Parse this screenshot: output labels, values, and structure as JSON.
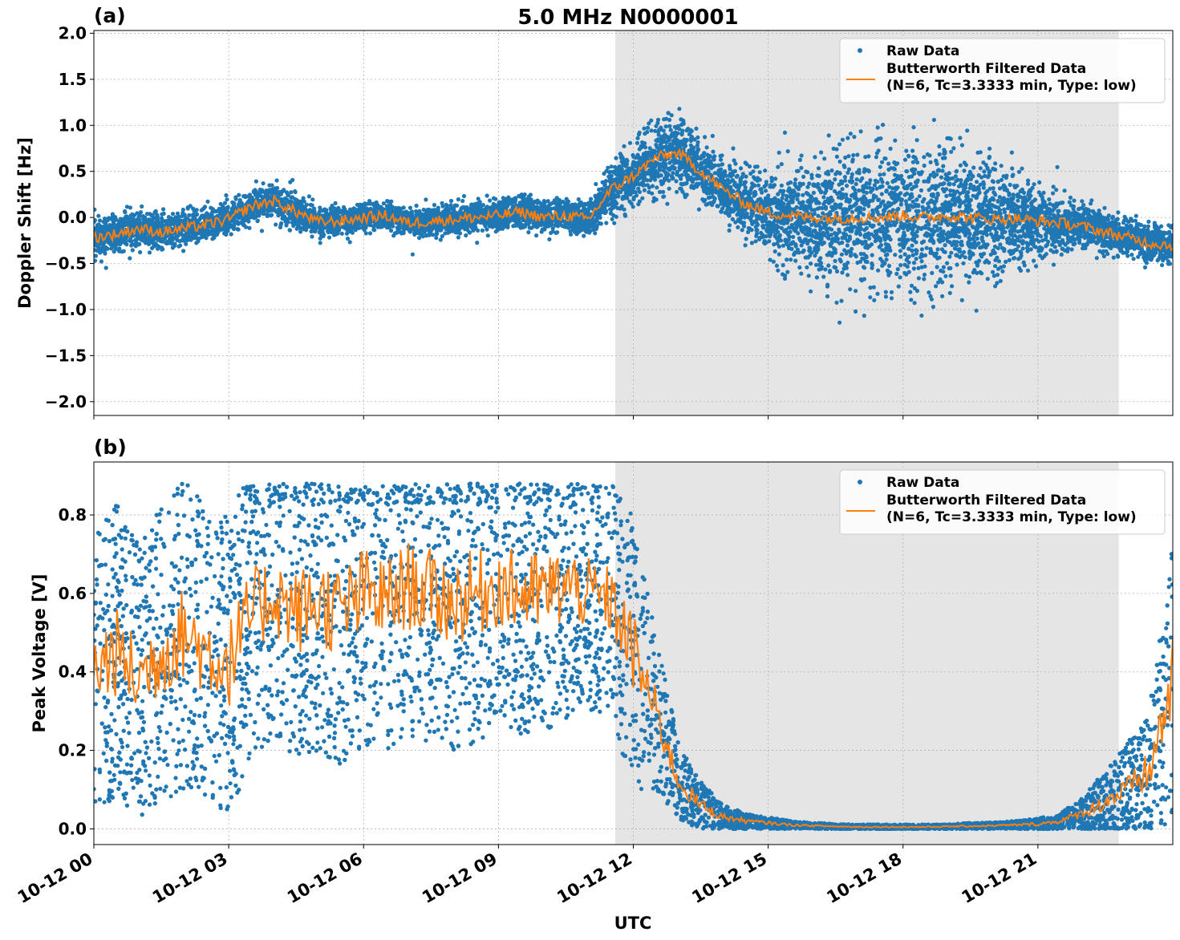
{
  "figure": {
    "title": "5.0 MHz N0000001",
    "xlabel": "UTC",
    "colors": {
      "raw": "#1f77b4",
      "filtered": "#ff7f0e",
      "shade": "#e5e5e5",
      "grid": "#b0b0b0"
    }
  },
  "chart_data": [
    {
      "panel_label": "(a)",
      "type": "scatter",
      "ylabel": "Doppler Shift [Hz]",
      "ylim": [
        -2.15,
        2.03
      ],
      "yticks": [
        -2.0,
        -1.5,
        -1.0,
        -0.5,
        0.0,
        0.5,
        1.0,
        1.5,
        2.0
      ],
      "ytick_labels": [
        "−2.0",
        "−1.5",
        "−1.0",
        "−0.5",
        "0.0",
        "0.5",
        "1.0",
        "1.5",
        "2.0"
      ],
      "xlim_hours": [
        0,
        24
      ],
      "shaded_interval_hours": [
        11.6,
        22.8
      ],
      "show_xtick_labels": false,
      "legend": {
        "position": "top-right",
        "raw_label": "Raw Data",
        "filtered_label_line1": "Butterworth Filtered Data",
        "filtered_label_line2": "(N=6, Tc=3.3333 min, Type: low)"
      },
      "series": [
        {
          "name": "Butterworth Filtered Data",
          "style": "line",
          "x_hours": [
            0,
            0.5,
            1,
            1.5,
            2,
            2.5,
            3,
            3.5,
            4,
            4.5,
            5,
            5.5,
            6,
            6.5,
            7,
            7.5,
            8,
            8.5,
            9,
            9.5,
            10,
            10.5,
            11,
            11.5,
            12,
            12.5,
            13,
            13.5,
            14,
            14.5,
            15,
            15.5,
            16,
            16.5,
            17,
            17.5,
            18,
            18.5,
            19,
            19.5,
            20,
            20.5,
            21,
            21.5,
            22,
            22.5,
            23,
            23.5,
            24
          ],
          "y": [
            -0.22,
            -0.18,
            -0.12,
            -0.16,
            -0.12,
            -0.08,
            -0.02,
            0.12,
            0.18,
            0.06,
            -0.05,
            -0.04,
            0.0,
            0.02,
            -0.06,
            -0.04,
            -0.02,
            0.0,
            0.02,
            0.06,
            0.0,
            0.02,
            -0.02,
            0.3,
            0.45,
            0.65,
            0.7,
            0.5,
            0.3,
            0.15,
            0.05,
            0.02,
            0.0,
            -0.01,
            0.0,
            0.0,
            0.02,
            0.0,
            0.02,
            0.0,
            -0.02,
            -0.01,
            -0.04,
            -0.06,
            -0.1,
            -0.16,
            -0.22,
            -0.28,
            -0.3
          ]
        },
        {
          "name": "Raw Data",
          "style": "scatter-band",
          "x_hours": [
            0,
            0.5,
            1,
            1.5,
            2,
            2.5,
            3,
            3.5,
            4,
            4.5,
            5,
            5.5,
            6,
            6.5,
            7,
            7.5,
            8,
            8.5,
            9,
            9.5,
            10,
            10.5,
            11,
            11.5,
            12,
            12.5,
            13,
            13.5,
            14,
            14.5,
            15,
            15.5,
            16,
            16.5,
            17,
            17.5,
            18,
            18.5,
            19,
            19.5,
            20,
            20.5,
            21,
            21.5,
            22,
            22.5,
            23,
            23.5,
            24
          ],
          "y_center": [
            -0.22,
            -0.18,
            -0.12,
            -0.16,
            -0.12,
            -0.08,
            -0.02,
            0.12,
            0.18,
            0.06,
            -0.05,
            -0.04,
            0.0,
            0.02,
            -0.06,
            -0.04,
            -0.02,
            0.0,
            0.02,
            0.06,
            0.0,
            0.02,
            -0.02,
            0.3,
            0.45,
            0.65,
            0.7,
            0.5,
            0.3,
            0.15,
            0.05,
            0.02,
            0.0,
            -0.01,
            0.0,
            0.0,
            0.02,
            0.0,
            0.02,
            0.0,
            -0.02,
            -0.01,
            -0.04,
            -0.06,
            -0.1,
            -0.16,
            -0.22,
            -0.28,
            -0.3
          ],
          "spread": [
            0.25,
            0.2,
            0.2,
            0.22,
            0.22,
            0.18,
            0.18,
            0.2,
            0.22,
            0.2,
            0.18,
            0.16,
            0.16,
            0.16,
            0.16,
            0.16,
            0.16,
            0.18,
            0.18,
            0.18,
            0.18,
            0.18,
            0.2,
            0.3,
            0.35,
            0.4,
            0.45,
            0.4,
            0.3,
            0.35,
            0.45,
            0.55,
            0.6,
            0.75,
            0.8,
            0.85,
            0.85,
            0.8,
            0.8,
            0.75,
            0.7,
            0.55,
            0.4,
            0.3,
            0.25,
            0.22,
            0.22,
            0.22,
            0.22
          ]
        }
      ]
    },
    {
      "panel_label": "(b)",
      "type": "scatter",
      "ylabel": "Peak Voltage [V]",
      "ylim": [
        -0.04,
        0.935
      ],
      "yticks": [
        0.0,
        0.2,
        0.4,
        0.6,
        0.8
      ],
      "ytick_labels": [
        "0.0",
        "0.2",
        "0.4",
        "0.6",
        "0.8"
      ],
      "xlim_hours": [
        0,
        24
      ],
      "shaded_interval_hours": [
        11.6,
        22.8
      ],
      "xticks_hours": [
        0,
        3,
        6,
        9,
        12,
        15,
        18,
        21
      ],
      "xtick_labels": [
        "10-12 00",
        "10-12 03",
        "10-12 06",
        "10-12 09",
        "10-12 12",
        "10-12 15",
        "10-12 18",
        "10-12 21"
      ],
      "legend": {
        "position": "top-right",
        "raw_label": "Raw Data",
        "filtered_label_line1": "Butterworth Filtered Data",
        "filtered_label_line2": "(N=6, Tc=3.3333 min, Type: low)"
      },
      "series": [
        {
          "name": "Butterworth Filtered Data",
          "style": "line",
          "x_hours": [
            0,
            0.5,
            1,
            1.5,
            2,
            2.5,
            3,
            3.5,
            4,
            4.5,
            5,
            5.5,
            6,
            6.5,
            7,
            7.5,
            8,
            8.5,
            9,
            9.5,
            10,
            10.5,
            11,
            11.5,
            12,
            12.5,
            13,
            13.5,
            14,
            14.5,
            15,
            15.5,
            16,
            16.5,
            17,
            17.5,
            18,
            18.5,
            19,
            19.5,
            20,
            20.5,
            21,
            21.5,
            22,
            22.5,
            23,
            23.5,
            24
          ],
          "y": [
            0.4,
            0.45,
            0.38,
            0.45,
            0.5,
            0.45,
            0.42,
            0.55,
            0.6,
            0.55,
            0.58,
            0.55,
            0.6,
            0.58,
            0.62,
            0.6,
            0.58,
            0.6,
            0.62,
            0.6,
            0.6,
            0.62,
            0.6,
            0.58,
            0.45,
            0.3,
            0.12,
            0.06,
            0.03,
            0.02,
            0.015,
            0.01,
            0.008,
            0.006,
            0.005,
            0.005,
            0.005,
            0.005,
            0.006,
            0.007,
            0.008,
            0.01,
            0.012,
            0.02,
            0.04,
            0.07,
            0.1,
            0.15,
            0.38
          ]
        },
        {
          "name": "Raw Data",
          "style": "scatter-band",
          "x_hours": [
            0,
            0.5,
            1,
            1.5,
            2,
            2.5,
            3,
            3.5,
            4,
            4.5,
            5,
            5.5,
            6,
            6.5,
            7,
            7.5,
            8,
            8.5,
            9,
            9.5,
            10,
            10.5,
            11,
            11.5,
            12,
            12.5,
            13,
            13.5,
            14,
            14.5,
            15,
            15.5,
            16,
            16.5,
            17,
            17.5,
            18,
            18.5,
            19,
            19.5,
            20,
            20.5,
            21,
            21.5,
            22,
            22.5,
            23,
            23.5,
            24
          ],
          "y_center": [
            0.4,
            0.45,
            0.38,
            0.45,
            0.5,
            0.45,
            0.42,
            0.55,
            0.6,
            0.55,
            0.58,
            0.55,
            0.6,
            0.58,
            0.62,
            0.6,
            0.58,
            0.6,
            0.62,
            0.6,
            0.6,
            0.62,
            0.6,
            0.58,
            0.45,
            0.3,
            0.12,
            0.06,
            0.03,
            0.02,
            0.015,
            0.01,
            0.008,
            0.006,
            0.005,
            0.005,
            0.005,
            0.005,
            0.006,
            0.007,
            0.008,
            0.01,
            0.012,
            0.02,
            0.04,
            0.07,
            0.1,
            0.15,
            0.38
          ],
          "spread": [
            0.35,
            0.38,
            0.35,
            0.38,
            0.4,
            0.38,
            0.38,
            0.38,
            0.36,
            0.38,
            0.38,
            0.4,
            0.4,
            0.38,
            0.38,
            0.38,
            0.38,
            0.38,
            0.36,
            0.36,
            0.36,
            0.34,
            0.3,
            0.3,
            0.35,
            0.2,
            0.1,
            0.06,
            0.03,
            0.02,
            0.015,
            0.01,
            0.008,
            0.006,
            0.006,
            0.006,
            0.006,
            0.006,
            0.006,
            0.008,
            0.008,
            0.01,
            0.015,
            0.02,
            0.04,
            0.08,
            0.12,
            0.18,
            0.35
          ]
        }
      ]
    }
  ]
}
